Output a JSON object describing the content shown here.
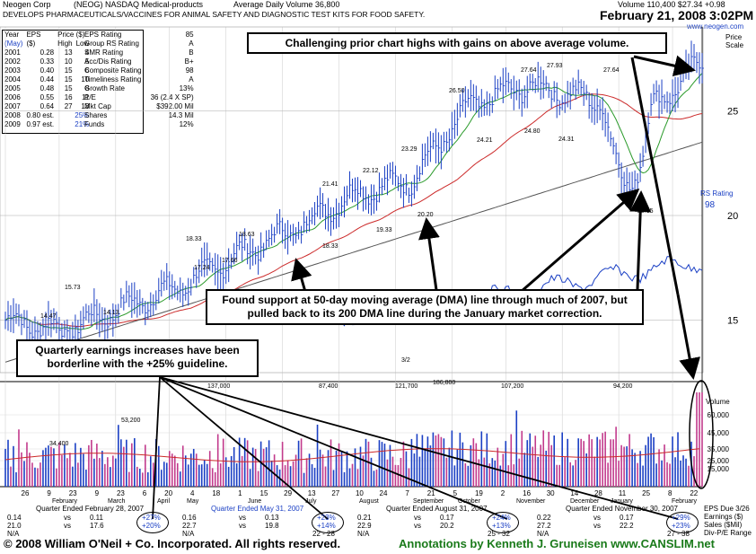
{
  "header": {
    "company": "Neogen Corp",
    "ticker_line": "(NEOG)  NASDAQ  Medical-products",
    "avg_volume": "Average Daily Volume 36,800",
    "quote": "Volume 110,400  $27.34 +0.98",
    "description": "DEVELOPS PHARMACEUTICALS/VACCINES FOR ANIMAL SAFETY AND DIAGNOSTIC TEST KITS FOR FOOD SAFETY.",
    "date": "February 21, 2008  3:02PM",
    "website": "www.neogen.com",
    "price_scale": "Price\nScale"
  },
  "fundamentals": {
    "headers": [
      "Year\n(May)",
      "EPS\n($)",
      "Price($)\nHigh Low"
    ],
    "rows": [
      [
        "2001",
        "0.28",
        "13",
        "4"
      ],
      [
        "2002",
        "0.33",
        "10",
        "5"
      ],
      [
        "2003",
        "0.40",
        "15",
        "6"
      ],
      [
        "2004",
        "0.44",
        "15",
        "10"
      ],
      [
        "2005",
        "0.48",
        "15",
        "8"
      ],
      [
        "2006",
        "0.55",
        "16",
        "11"
      ],
      [
        "2007",
        "0.64",
        "27",
        "13"
      ],
      [
        "2008",
        "0.80 est.",
        "25%",
        ""
      ],
      [
        "2009",
        "0.97 est.",
        "21%",
        ""
      ]
    ],
    "ratings": [
      [
        "EPS Rating",
        "85"
      ],
      [
        "Group RS Rating",
        "A"
      ],
      [
        "SMR Rating",
        "B"
      ],
      [
        "Acc/Dis Rating",
        "B+"
      ],
      [
        "Composite Rating",
        "98"
      ],
      [
        "Timeliness Rating",
        "A"
      ],
      [
        "Growth Rate",
        "13%"
      ],
      [
        "P/E",
        "36 (2.4 X SP)"
      ],
      [
        "Mkt Cap",
        "$392.00 Mil"
      ],
      [
        "Shares",
        "14.3 Mil"
      ],
      [
        "Funds",
        "12%"
      ]
    ]
  },
  "annotations": {
    "top": "Challenging prior chart highs with gains on above average volume.",
    "middle": "Found support at 50-day moving average (DMA) line through much of 2007, but pulled back to its 200 DMA line during the January market correction.",
    "left": "Quarterly earnings increases have been borderline with the +25% guideline."
  },
  "footer": {
    "copyright": "© 2008 William O'Neil + Co. Incorporated.  All rights reserved.",
    "annotator": "Annotations by Kenneth J. Gruneisen www.CANSLIM.net"
  },
  "quarters": [
    {
      "label": "Quarter Ended February 28, 2007",
      "eps": "0.14",
      "vs1": "vs",
      "prior_eps": "0.11",
      "eps_pct": "+27%",
      "sales": "21.0",
      "vs2": "vs",
      "prior_sales": "17.6",
      "sales_pct": "+20%",
      "pe": "N/A",
      "pe_rng": ""
    },
    {
      "label": "Quarter Ended May 31, 2007",
      "eps": "0.16",
      "vs1": "vs",
      "prior_eps": "0.13",
      "eps_pct": "+23%",
      "sales": "22.7",
      "vs2": "vs",
      "prior_sales": "19.8",
      "sales_pct": "+14%",
      "pe": "N/A",
      "pe_rng": "22 - 28"
    },
    {
      "label": "Quarter Ended August 31, 2007",
      "eps": "0.21",
      "vs1": "vs",
      "prior_eps": "0.17",
      "eps_pct": "+24%",
      "sales": "22.9",
      "vs2": "vs",
      "prior_sales": "20.2",
      "sales_pct": "+13%",
      "pe": "N/A",
      "pe_rng": "25 - 32"
    },
    {
      "label": "Quarter Ended November 30, 2007",
      "eps": "0.22",
      "vs1": "vs",
      "prior_eps": "0.17",
      "eps_pct": "+29%",
      "sales": "27.2",
      "vs2": "vs",
      "prior_sales": "22.2",
      "sales_pct": "+23%",
      "pe": "N/A",
      "pe_rng": "27 - 38"
    }
  ],
  "legend_right": [
    "EPS Due 3/26",
    "Earnings ($)",
    "Sales ($Mil)",
    "Div-P/E Range"
  ],
  "colors": {
    "price_bars": "#1a3fc4",
    "ma50": "#2a9a2a",
    "ma200_red": "#cc2a2a",
    "ma_gray": "#555555",
    "rs_line": "#1a3fc4",
    "vol_up": "#1a3fc4",
    "vol_down": "#c23a8c",
    "annot_green": "#1a7a1a"
  },
  "chart_data": {
    "type": "line",
    "title": "",
    "price_axis": {
      "ticks": [
        15,
        20,
        25
      ],
      "ylim": [
        12.5,
        29
      ]
    },
    "volume_axis": {
      "ticks": [
        "60,000",
        "45,000",
        "35,000",
        "25,000",
        "15,000"
      ],
      "title": "Volume"
    },
    "rs_rating": {
      "label": "RS Rating",
      "value": "98"
    },
    "months": [
      "February",
      "March",
      "April",
      "May",
      "June",
      "July",
      "August",
      "September",
      "October",
      "November",
      "December",
      "January",
      "February"
    ],
    "date_ticks": [
      "26",
      "9",
      "23",
      "9",
      "23",
      "6",
      "20",
      "4",
      "18",
      "1",
      "15",
      "29",
      "13",
      "27",
      "10",
      "24",
      "7",
      "21",
      "5",
      "19",
      "2",
      "16",
      "30",
      "14",
      "28",
      "11",
      "25",
      "8",
      "22"
    ],
    "price_labels": [
      "15.73",
      "14.47",
      "14.13",
      "18.33",
      "17.66",
      "17.24",
      "18.63",
      "21.41",
      "18.33",
      "22.12",
      "19.33",
      "23.29",
      "20.20",
      "26.50",
      "24.21",
      "27.64",
      "24.80",
      "27.93",
      "24.31",
      "27.64",
      "20.35"
    ],
    "volume_labels": [
      "34,400",
      "53,200",
      "137,000",
      "87,400",
      "121,700",
      "186,800",
      "107,200",
      "94,200"
    ],
    "split_label": "3/2",
    "price_series": {
      "dates": [
        "2007-02",
        "2007-03",
        "2007-04",
        "2007-05",
        "2007-06",
        "2007-07",
        "2007-08",
        "2007-09",
        "2007-10",
        "2007-11",
        "2007-12",
        "2008-01",
        "2008-02"
      ],
      "close": [
        15.0,
        14.5,
        15.6,
        16.6,
        18.1,
        19.4,
        21.0,
        21.7,
        25.3,
        26.2,
        25.6,
        24.8,
        27.34
      ]
    },
    "series": [
      {
        "name": "50 DMA"
      },
      {
        "name": "200 DMA"
      }
    ]
  }
}
